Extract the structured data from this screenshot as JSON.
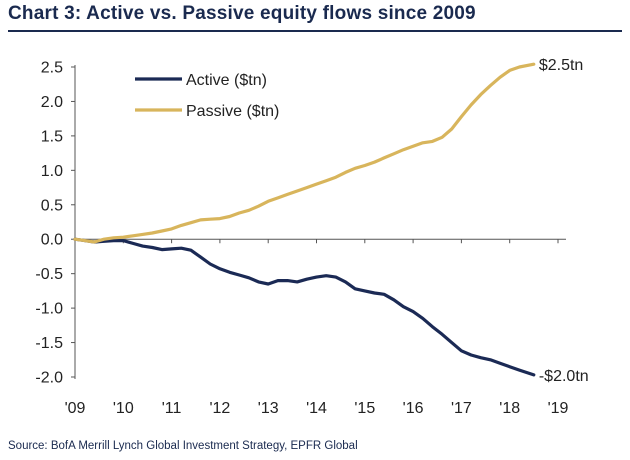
{
  "title": "Chart 3: Active vs. Passive equity flows since 2009",
  "source": "Source: BofA Merrill Lynch Global Investment Strategy, EPFR Global",
  "chart_data": {
    "type": "line",
    "title": "Chart 3: Active vs. Passive equity flows since 2009",
    "xlabel": "",
    "ylabel": "",
    "xlim": [
      2009,
      2019
    ],
    "ylim": [
      -2.0,
      2.5
    ],
    "x_ticks": [
      2009,
      2010,
      2011,
      2012,
      2013,
      2014,
      2015,
      2016,
      2017,
      2018,
      2019
    ],
    "x_tick_labels": [
      "'09",
      "'10",
      "'11",
      "'12",
      "'13",
      "'14",
      "'15",
      "'16",
      "'17",
      "'18",
      "'19"
    ],
    "y_ticks": [
      2.5,
      2.0,
      1.5,
      1.0,
      0.5,
      0.0,
      -0.5,
      -1.0,
      -1.5,
      -2.0
    ],
    "y_tick_labels": [
      "2.5",
      "2.0",
      "1.5",
      "1.0",
      "0.5",
      "0.0",
      "-0.5",
      "-1.0",
      "-1.5",
      "-2.0"
    ],
    "grid": false,
    "legend_position": "top-left",
    "series": [
      {
        "name": "Active ($tn)",
        "color": "#1b2a55",
        "x": [
          2009.0,
          2009.2,
          2009.4,
          2009.6,
          2009.8,
          2010.0,
          2010.2,
          2010.4,
          2010.6,
          2010.8,
          2011.0,
          2011.2,
          2011.4,
          2011.6,
          2011.8,
          2012.0,
          2012.2,
          2012.4,
          2012.6,
          2012.8,
          2013.0,
          2013.2,
          2013.4,
          2013.6,
          2013.8,
          2014.0,
          2014.2,
          2014.4,
          2014.6,
          2014.8,
          2015.0,
          2015.2,
          2015.4,
          2015.6,
          2015.8,
          2016.0,
          2016.2,
          2016.4,
          2016.6,
          2016.8,
          2017.0,
          2017.2,
          2017.4,
          2017.6,
          2017.8,
          2018.0,
          2018.2,
          2018.5
        ],
        "y": [
          0.0,
          -0.02,
          -0.04,
          -0.03,
          -0.02,
          -0.02,
          -0.06,
          -0.1,
          -0.12,
          -0.15,
          -0.14,
          -0.13,
          -0.16,
          -0.26,
          -0.36,
          -0.43,
          -0.48,
          -0.52,
          -0.56,
          -0.62,
          -0.65,
          -0.6,
          -0.6,
          -0.62,
          -0.58,
          -0.55,
          -0.53,
          -0.55,
          -0.62,
          -0.72,
          -0.75,
          -0.78,
          -0.8,
          -0.88,
          -0.98,
          -1.05,
          -1.15,
          -1.27,
          -1.38,
          -1.5,
          -1.62,
          -1.68,
          -1.72,
          -1.75,
          -1.8,
          -1.85,
          -1.9,
          -1.97
        ]
      },
      {
        "name": "Passive ($tn)",
        "color": "#d8b55c",
        "x": [
          2009.0,
          2009.2,
          2009.4,
          2009.6,
          2009.8,
          2010.0,
          2010.2,
          2010.4,
          2010.6,
          2010.8,
          2011.0,
          2011.2,
          2011.4,
          2011.6,
          2011.8,
          2012.0,
          2012.2,
          2012.4,
          2012.6,
          2012.8,
          2013.0,
          2013.2,
          2013.4,
          2013.6,
          2013.8,
          2014.0,
          2014.2,
          2014.4,
          2014.6,
          2014.8,
          2015.0,
          2015.2,
          2015.4,
          2015.6,
          2015.8,
          2016.0,
          2016.2,
          2016.4,
          2016.6,
          2016.8,
          2017.0,
          2017.2,
          2017.4,
          2017.6,
          2017.8,
          2018.0,
          2018.2,
          2018.5
        ],
        "y": [
          0.0,
          -0.02,
          -0.04,
          0.0,
          0.02,
          0.03,
          0.05,
          0.07,
          0.09,
          0.12,
          0.15,
          0.2,
          0.24,
          0.28,
          0.29,
          0.3,
          0.33,
          0.38,
          0.42,
          0.48,
          0.55,
          0.6,
          0.65,
          0.7,
          0.75,
          0.8,
          0.85,
          0.9,
          0.97,
          1.03,
          1.07,
          1.12,
          1.18,
          1.24,
          1.3,
          1.35,
          1.4,
          1.42,
          1.48,
          1.6,
          1.78,
          1.95,
          2.1,
          2.23,
          2.35,
          2.45,
          2.5,
          2.54
        ]
      }
    ],
    "annotations": [
      {
        "text": "$2.5tn",
        "series": "Passive ($tn)"
      },
      {
        "text": "-$2.0tn",
        "series": "Active ($tn)"
      }
    ]
  }
}
